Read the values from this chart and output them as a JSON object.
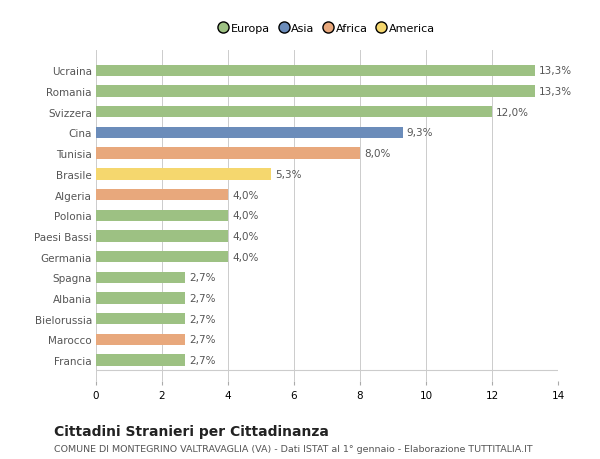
{
  "categories": [
    "Ucraina",
    "Romania",
    "Svizzera",
    "Cina",
    "Tunisia",
    "Brasile",
    "Algeria",
    "Polonia",
    "Paesi Bassi",
    "Germania",
    "Spagna",
    "Albania",
    "Bielorussia",
    "Marocco",
    "Francia"
  ],
  "values": [
    13.3,
    13.3,
    12.0,
    9.3,
    8.0,
    5.3,
    4.0,
    4.0,
    4.0,
    4.0,
    2.7,
    2.7,
    2.7,
    2.7,
    2.7
  ],
  "labels": [
    "13,3%",
    "13,3%",
    "12,0%",
    "9,3%",
    "8,0%",
    "5,3%",
    "4,0%",
    "4,0%",
    "4,0%",
    "4,0%",
    "2,7%",
    "2,7%",
    "2,7%",
    "2,7%",
    "2,7%"
  ],
  "continents": [
    "Europa",
    "Europa",
    "Europa",
    "Asia",
    "Africa",
    "America",
    "Africa",
    "Europa",
    "Europa",
    "Europa",
    "Europa",
    "Europa",
    "Europa",
    "Africa",
    "Europa"
  ],
  "continent_colors": {
    "Europa": "#9dc183",
    "Asia": "#6b8cba",
    "Africa": "#e8a87c",
    "America": "#f5d76e"
  },
  "legend_order": [
    "Europa",
    "Asia",
    "Africa",
    "America"
  ],
  "legend_colors": [
    "#9dc183",
    "#6b8cba",
    "#e8a87c",
    "#f5d76e"
  ],
  "title": "Cittadini Stranieri per Cittadinanza",
  "subtitle": "COMUNE DI MONTEGRINO VALTRAVAGLIA (VA) - Dati ISTAT al 1° gennaio - Elaborazione TUTTITALIA.IT",
  "xlim": [
    0,
    14
  ],
  "xticks": [
    0,
    2,
    4,
    6,
    8,
    10,
    12,
    14
  ],
  "bar_height": 0.55,
  "background_color": "#ffffff",
  "grid_color": "#cccccc",
  "text_color": "#555555",
  "label_fontsize": 7.5,
  "ytick_fontsize": 7.5,
  "xtick_fontsize": 7.5,
  "title_fontsize": 10,
  "subtitle_fontsize": 6.8
}
